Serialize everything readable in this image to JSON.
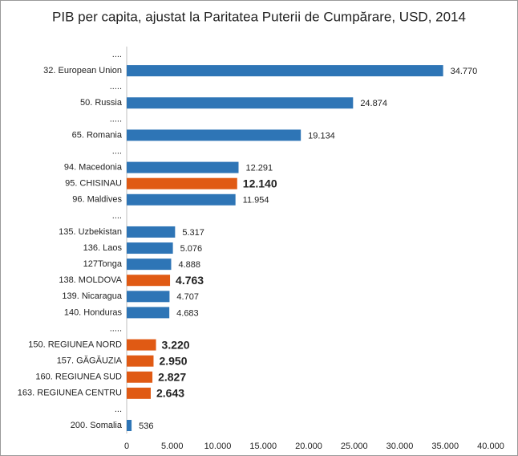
{
  "chart_data": {
    "type": "bar",
    "orientation": "horizontal",
    "title": "PIB per capita, ajustat la Paritatea Puterii de Cumpărare, USD, 2014",
    "categories": [
      "....",
      "32. European Union",
      ".....",
      "50. Russia",
      ".....",
      "65. Romania",
      "....",
      "94. Macedonia",
      "95. CHISINAU",
      "96. Maldives",
      "....",
      "135. Uzbekistan",
      "136. Laos",
      "127Tonga",
      "138. MOLDOVA",
      "139. Nicaragua",
      "140. Honduras",
      ".....",
      "150. REGIUNEA NORD",
      "157. GĂGĂUZIA",
      "160. REGIUNEA SUD",
      "163. REGIUNEA CENTRU",
      "...",
      "200. Somalia"
    ],
    "values": [
      null,
      34770,
      null,
      24874,
      null,
      19134,
      null,
      12291,
      12140,
      11954,
      null,
      5317,
      5076,
      4888,
      4763,
      4707,
      4683,
      null,
      3220,
      2950,
      2827,
      2643,
      null,
      536
    ],
    "value_labels": [
      null,
      "34.770",
      null,
      "24.874",
      null,
      "19.134",
      null,
      "12.291",
      "12.140",
      "11.954",
      null,
      "5.317",
      "5.076",
      "4.888",
      "4.763",
      "4.707",
      "4.683",
      null,
      "3.220",
      "2.950",
      "2.827",
      "2.643",
      null,
      "536"
    ],
    "colors": [
      null,
      "#2e75b6",
      null,
      "#2e75b6",
      null,
      "#2e75b6",
      null,
      "#2e75b6",
      "#e05a14",
      "#2e75b6",
      null,
      "#2e75b6",
      "#2e75b6",
      "#2e75b6",
      "#e05a14",
      "#2e75b6",
      "#2e75b6",
      null,
      "#e05a14",
      "#e05a14",
      "#e05a14",
      "#e05a14",
      null,
      "#2e75b6"
    ],
    "value_label_colors": [
      null,
      "#222222",
      null,
      "#222222",
      null,
      "#222222",
      null,
      "#222222",
      "#c00000",
      "#222222",
      null,
      "#222222",
      "#222222",
      "#222222",
      "#c00000",
      "#222222",
      "#222222",
      null,
      "#c00000",
      "#c00000",
      "#c00000",
      "#c00000",
      null,
      "#222222"
    ],
    "xlim": [
      0,
      40000
    ],
    "xticks": [
      0,
      {
        "value": 5000,
        "label": "5.000"
      },
      {
        "value": 10000,
        "label": "10.000"
      },
      {
        "value": 15000,
        "label": "15.000"
      },
      {
        "value": 20000,
        "label": "20.000"
      },
      {
        "value": 25000,
        "label": "25.000"
      },
      {
        "value": 30000,
        "label": "30.000"
      },
      {
        "value": 35000,
        "label": "35.000"
      },
      {
        "value": 40000,
        "label": "40.000"
      }
    ],
    "grid": false
  }
}
